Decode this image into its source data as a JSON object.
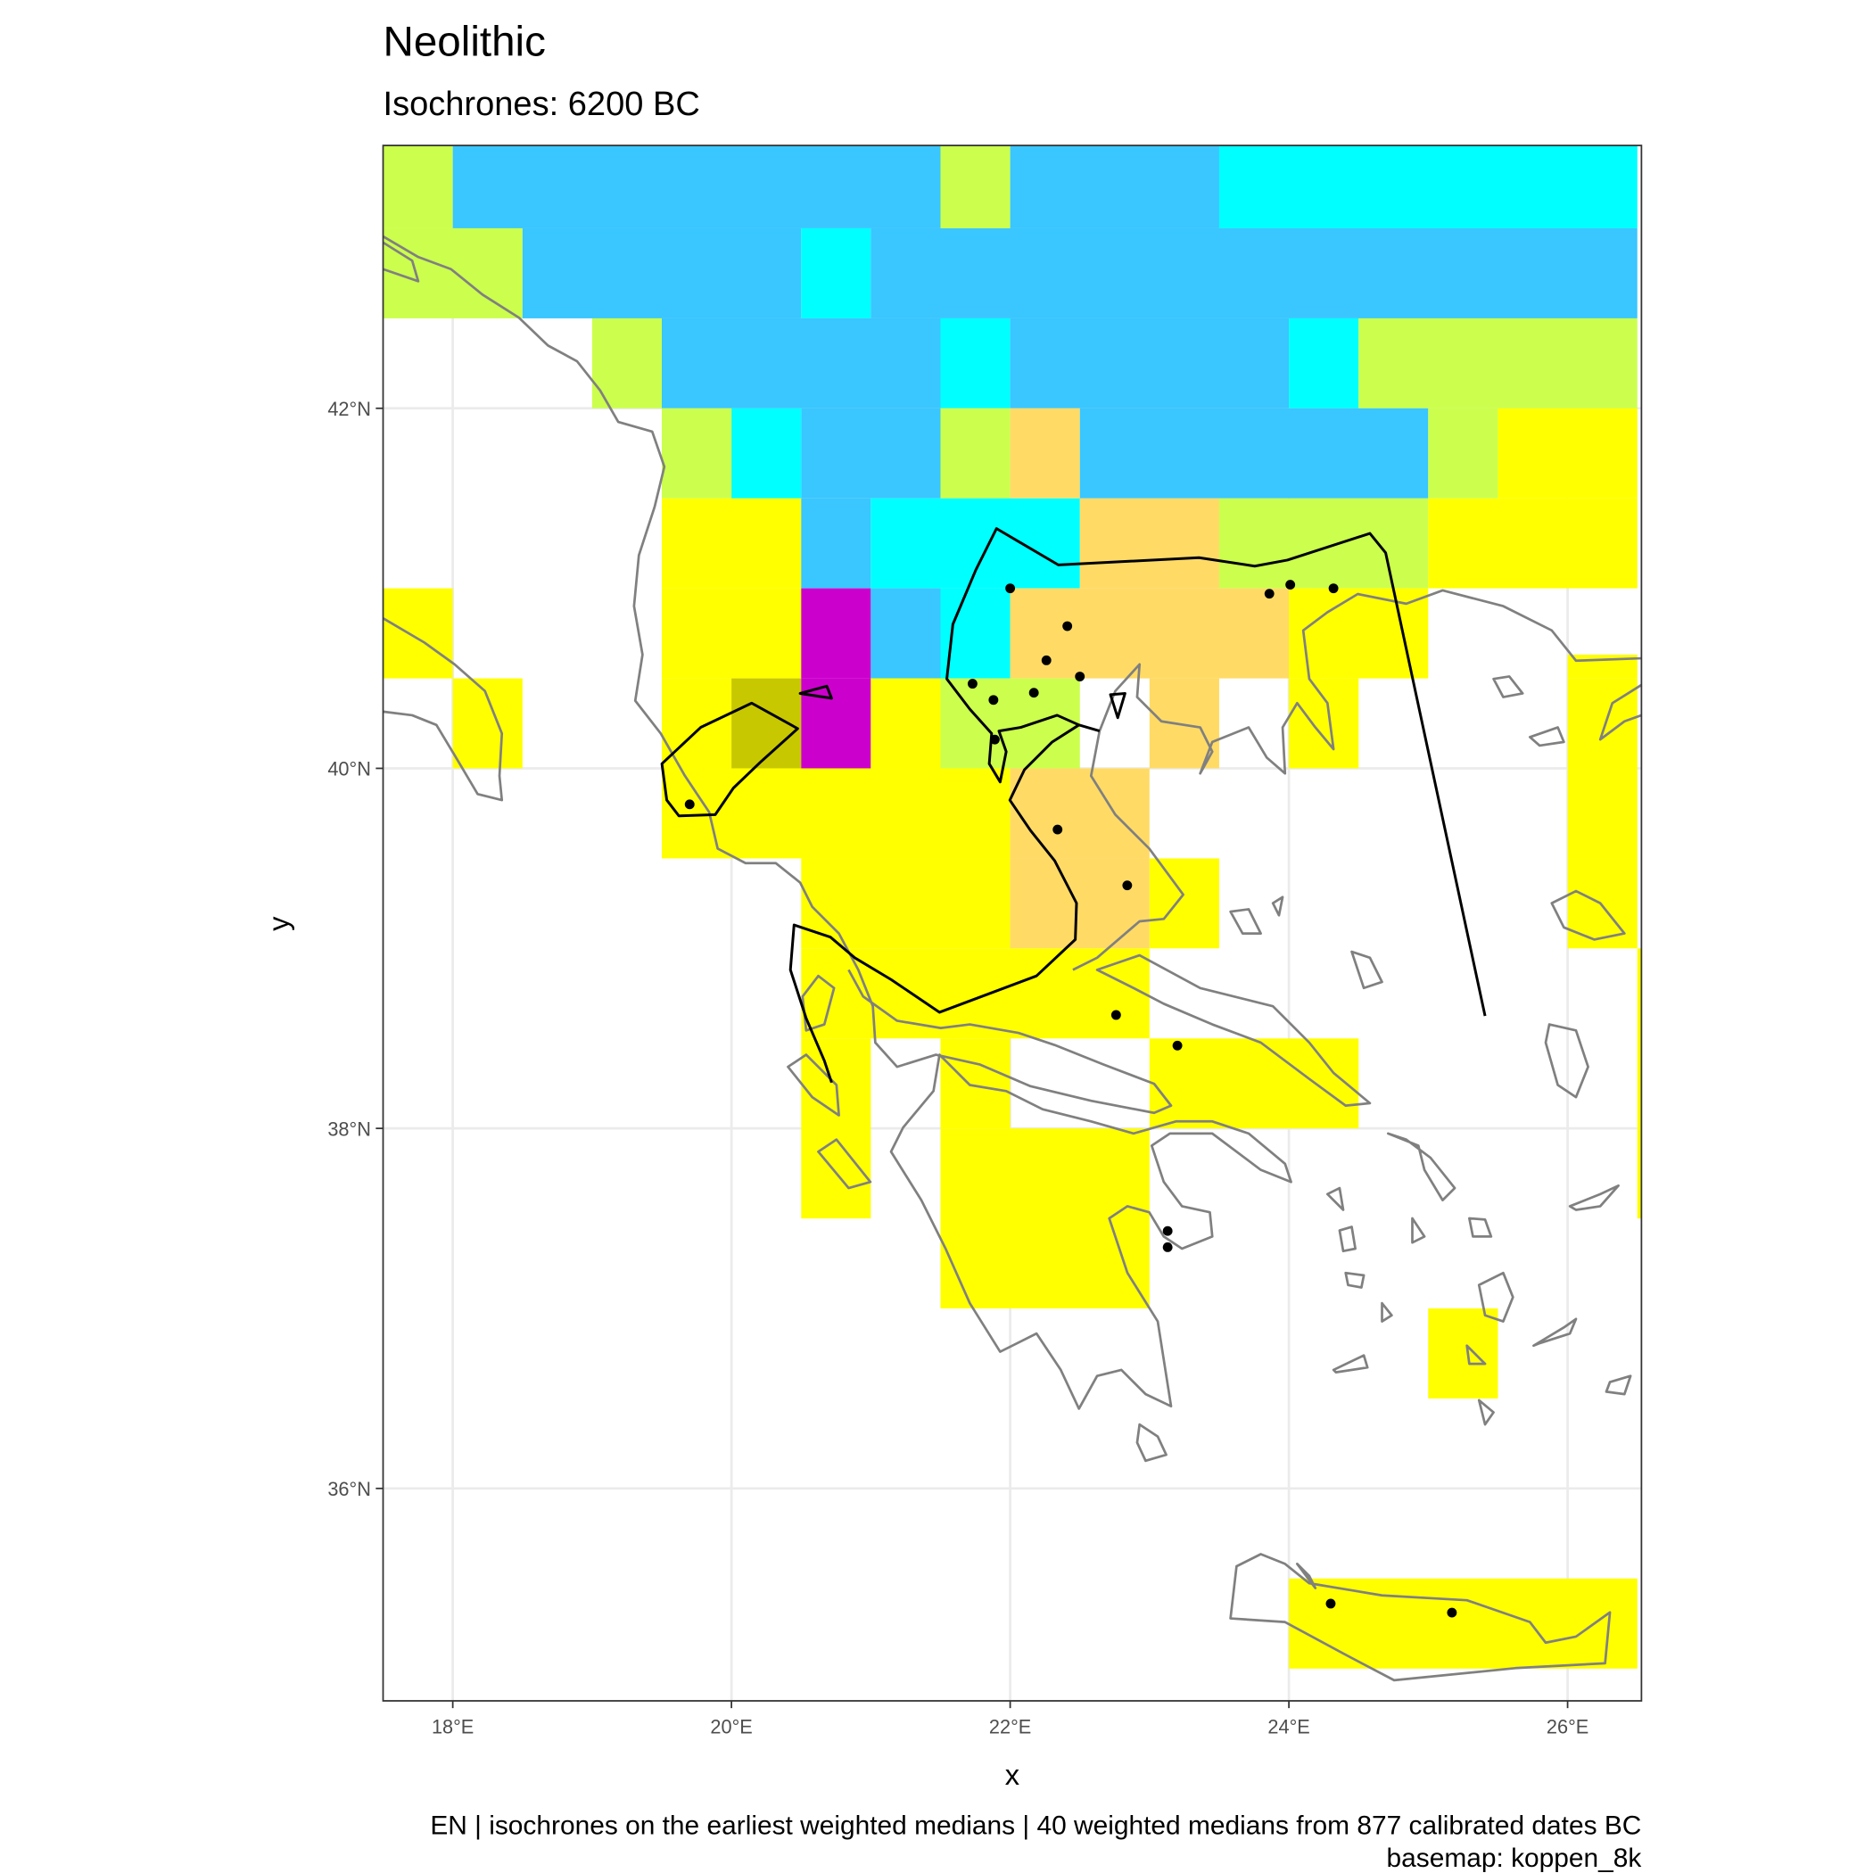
{
  "chart_data": {
    "type": "map",
    "title": "Neolithic",
    "subtitle": "Isochrones: 6200 BC",
    "xlabel": "x",
    "ylabel": "y",
    "caption": [
      "EN | isochrones on the earliest weighted medians | 40 weighted medians from 877 calibrated dates BC",
      "basemap: koppen_8k"
    ],
    "xlim": [
      17.5,
      26.53
    ],
    "ylim": [
      34.82,
      43.46
    ],
    "xticks": [
      {
        "value": 18,
        "label": "18°E"
      },
      {
        "value": 20,
        "label": "20°E"
      },
      {
        "value": 22,
        "label": "22°E"
      },
      {
        "value": 24,
        "label": "24°E"
      },
      {
        "value": 26,
        "label": "26°E"
      }
    ],
    "yticks": [
      {
        "value": 36,
        "label": "36°N"
      },
      {
        "value": 38,
        "label": "38°N"
      },
      {
        "value": 40,
        "label": "40°N"
      },
      {
        "value": 42,
        "label": "42°N"
      }
    ],
    "grid": true,
    "point_color": "#000000",
    "x": [
      22.0,
      22.41,
      22.26,
      21.73,
      21.88,
      22.17,
      22.5,
      21.89,
      19.7,
      22.34,
      22.84,
      22.76,
      23.2,
      23.13,
      23.13,
      23.86,
      24.01,
      24.32,
      24.3,
      25.17
    ],
    "y": [
      41.0,
      40.79,
      40.6,
      40.47,
      40.38,
      40.42,
      40.51,
      40.16,
      39.8,
      39.66,
      39.35,
      38.63,
      38.46,
      37.43,
      37.34,
      40.97,
      41.02,
      41.0,
      35.36,
      35.31
    ]
  }
}
